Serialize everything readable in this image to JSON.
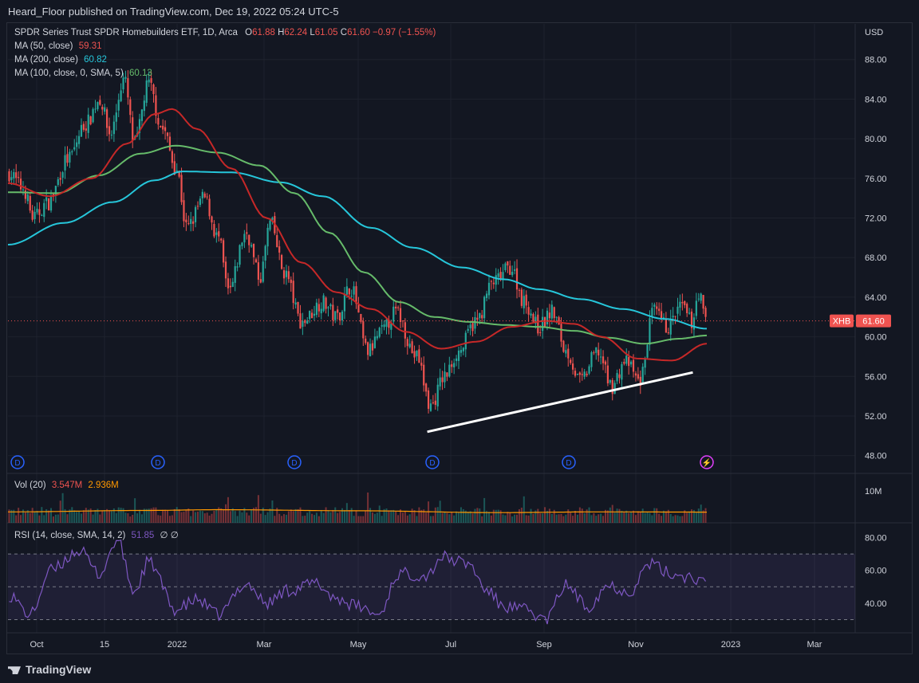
{
  "header": {
    "publish_line": "Heard_Floor published on TradingView.com, Dec 19, 2022 05:24 UTC-5"
  },
  "footer": {
    "brand": "TradingView"
  },
  "legend": {
    "symbol_line": "SPDR Series Trust SPDR Homebuilders ETF, 1D, Arca",
    "ohlc": {
      "o_label": "O",
      "o": "61.88",
      "h_label": "H",
      "h": "62.24",
      "l_label": "L",
      "l": "61.05",
      "c_label": "C",
      "c": "61.60",
      "change": "−0.97 (−1.55%)"
    },
    "ma50": {
      "label": "MA (50, close)",
      "value": "59.31"
    },
    "ma200": {
      "label": "MA (200, close)",
      "value": "60.82"
    },
    "ma100": {
      "label": "MA (100, close, 0, SMA, 5)",
      "value": "60.13"
    },
    "vol": {
      "label": "Vol (20)",
      "value1": "3.547M",
      "value2": "2.936M"
    },
    "rsi": {
      "label": "RSI (14, close, SMA, 14, 2)",
      "value": "51.85",
      "extra": "∅ ∅"
    }
  },
  "colors": {
    "background": "#131722",
    "up": "#26a69a",
    "down": "#ef5350",
    "ma50": "#c62828",
    "ma200": "#26c6da",
    "ma100": "#66bb6a",
    "rsi": "#7e57c2",
    "vol_ma": "#ff9800",
    "trendline": "#ffffff",
    "grid": "#1e222d",
    "text": "#d1d4dc"
  },
  "chart_data": {
    "type": "candlestick",
    "title": "SPDR Series Trust SPDR Homebuilders ETF, 1D, Arca",
    "ticker": "XHB",
    "last_price": "61.60",
    "currency_label": "USD",
    "price_axis_ticks": [
      "88.00",
      "84.00",
      "80.00",
      "76.00",
      "72.00",
      "68.00",
      "64.00",
      "60.00",
      "56.00",
      "52.00",
      "48.00"
    ],
    "ylim": [
      46.2,
      91.6
    ],
    "volume_axis_ticks": [
      "10M"
    ],
    "rsi_axis_ticks": [
      "80.00",
      "60.00",
      "40.00"
    ],
    "rsi_levels": [
      70,
      50,
      30
    ],
    "x_ticks": [
      "Oct",
      "15",
      "2022",
      "Mar",
      "May",
      "Jul",
      "Sep",
      "Nov",
      "2023",
      "Mar"
    ],
    "price_anchors": [
      {
        "t": 0,
        "v": 76.5
      },
      {
        "t": 0.02,
        "v": 75.0
      },
      {
        "t": 0.035,
        "v": 72.0
      },
      {
        "t": 0.055,
        "v": 73.5
      },
      {
        "t": 0.085,
        "v": 78.0
      },
      {
        "t": 0.11,
        "v": 81.5
      },
      {
        "t": 0.13,
        "v": 84.0
      },
      {
        "t": 0.145,
        "v": 80.5
      },
      {
        "t": 0.165,
        "v": 86.0
      },
      {
        "t": 0.18,
        "v": 79.5
      },
      {
        "t": 0.2,
        "v": 85.5
      },
      {
        "t": 0.22,
        "v": 81.0
      },
      {
        "t": 0.24,
        "v": 77.0
      },
      {
        "t": 0.255,
        "v": 71.0
      },
      {
        "t": 0.28,
        "v": 74.0
      },
      {
        "t": 0.3,
        "v": 70.0
      },
      {
        "t": 0.315,
        "v": 64.5
      },
      {
        "t": 0.34,
        "v": 70.5
      },
      {
        "t": 0.36,
        "v": 66.0
      },
      {
        "t": 0.375,
        "v": 71.5
      },
      {
        "t": 0.395,
        "v": 66.5
      },
      {
        "t": 0.42,
        "v": 61.5
      },
      {
        "t": 0.45,
        "v": 63.5
      },
      {
        "t": 0.47,
        "v": 62.0
      },
      {
        "t": 0.49,
        "v": 65.0
      },
      {
        "t": 0.515,
        "v": 58.5
      },
      {
        "t": 0.535,
        "v": 60.5
      },
      {
        "t": 0.555,
        "v": 62.5
      },
      {
        "t": 0.585,
        "v": 58.0
      },
      {
        "t": 0.605,
        "v": 53.0
      },
      {
        "t": 0.625,
        "v": 56.0
      },
      {
        "t": 0.645,
        "v": 58.5
      },
      {
        "t": 0.67,
        "v": 61.5
      },
      {
        "t": 0.695,
        "v": 65.5
      },
      {
        "t": 0.72,
        "v": 67.0
      },
      {
        "t": 0.74,
        "v": 63.5
      },
      {
        "t": 0.76,
        "v": 61.0
      },
      {
        "t": 0.78,
        "v": 62.5
      },
      {
        "t": 0.8,
        "v": 58.5
      },
      {
        "t": 0.82,
        "v": 55.5
      },
      {
        "t": 0.845,
        "v": 58.5
      },
      {
        "t": 0.865,
        "v": 55.0
      },
      {
        "t": 0.885,
        "v": 57.5
      },
      {
        "t": 0.905,
        "v": 55.5
      },
      {
        "t": 0.925,
        "v": 62.5
      },
      {
        "t": 0.945,
        "v": 61.0
      },
      {
        "t": 0.965,
        "v": 63.0
      },
      {
        "t": 0.98,
        "v": 61.5
      },
      {
        "t": 0.99,
        "v": 64.5
      },
      {
        "t": 1.0,
        "v": 61.6
      }
    ],
    "ma50_anchors": [
      {
        "t": 0,
        "v": 75.5
      },
      {
        "t": 0.06,
        "v": 74.2
      },
      {
        "t": 0.12,
        "v": 76.0
      },
      {
        "t": 0.17,
        "v": 79.5
      },
      {
        "t": 0.21,
        "v": 82.5
      },
      {
        "t": 0.235,
        "v": 83.0
      },
      {
        "t": 0.27,
        "v": 81.0
      },
      {
        "t": 0.32,
        "v": 77.0
      },
      {
        "t": 0.37,
        "v": 72.0
      },
      {
        "t": 0.42,
        "v": 67.5
      },
      {
        "t": 0.47,
        "v": 64.5
      },
      {
        "t": 0.52,
        "v": 62.8
      },
      {
        "t": 0.57,
        "v": 60.5
      },
      {
        "t": 0.62,
        "v": 58.8
      },
      {
        "t": 0.67,
        "v": 59.5
      },
      {
        "t": 0.72,
        "v": 61.0
      },
      {
        "t": 0.77,
        "v": 61.6
      },
      {
        "t": 0.81,
        "v": 61.3
      },
      {
        "t": 0.85,
        "v": 60.0
      },
      {
        "t": 0.9,
        "v": 57.8
      },
      {
        "t": 0.95,
        "v": 57.6
      },
      {
        "t": 1.0,
        "v": 59.31
      }
    ],
    "ma100_anchors": [
      {
        "t": 0,
        "v": 74.6
      },
      {
        "t": 0.07,
        "v": 74.5
      },
      {
        "t": 0.13,
        "v": 76.3
      },
      {
        "t": 0.19,
        "v": 78.5
      },
      {
        "t": 0.24,
        "v": 79.3
      },
      {
        "t": 0.3,
        "v": 78.6
      },
      {
        "t": 0.36,
        "v": 77.3
      },
      {
        "t": 0.41,
        "v": 74.5
      },
      {
        "t": 0.46,
        "v": 70.5
      },
      {
        "t": 0.51,
        "v": 66.5
      },
      {
        "t": 0.56,
        "v": 63.5
      },
      {
        "t": 0.61,
        "v": 62.0
      },
      {
        "t": 0.66,
        "v": 61.5
      },
      {
        "t": 0.71,
        "v": 61.2
      },
      {
        "t": 0.76,
        "v": 61.0
      },
      {
        "t": 0.81,
        "v": 60.6
      },
      {
        "t": 0.86,
        "v": 59.9
      },
      {
        "t": 0.91,
        "v": 59.3
      },
      {
        "t": 0.96,
        "v": 59.8
      },
      {
        "t": 1.0,
        "v": 60.13
      }
    ],
    "ma200_anchors": [
      {
        "t": 0,
        "v": 69.3
      },
      {
        "t": 0.08,
        "v": 71.5
      },
      {
        "t": 0.15,
        "v": 73.6
      },
      {
        "t": 0.21,
        "v": 75.8
      },
      {
        "t": 0.25,
        "v": 76.7
      },
      {
        "t": 0.32,
        "v": 76.6
      },
      {
        "t": 0.39,
        "v": 75.6
      },
      {
        "t": 0.45,
        "v": 74.2
      },
      {
        "t": 0.52,
        "v": 71.0
      },
      {
        "t": 0.58,
        "v": 69.0
      },
      {
        "t": 0.65,
        "v": 67.0
      },
      {
        "t": 0.71,
        "v": 65.8
      },
      {
        "t": 0.76,
        "v": 64.8
      },
      {
        "t": 0.82,
        "v": 63.8
      },
      {
        "t": 0.88,
        "v": 62.8
      },
      {
        "t": 0.94,
        "v": 61.8
      },
      {
        "t": 1.0,
        "v": 60.82
      }
    ],
    "rsi_anchors": [
      {
        "t": 0,
        "v": 45
      },
      {
        "t": 0.03,
        "v": 33
      },
      {
        "t": 0.06,
        "v": 60
      },
      {
        "t": 0.1,
        "v": 72
      },
      {
        "t": 0.13,
        "v": 58
      },
      {
        "t": 0.155,
        "v": 78
      },
      {
        "t": 0.18,
        "v": 47
      },
      {
        "t": 0.2,
        "v": 65
      },
      {
        "t": 0.24,
        "v": 36
      },
      {
        "t": 0.27,
        "v": 42
      },
      {
        "t": 0.3,
        "v": 33
      },
      {
        "t": 0.34,
        "v": 52
      },
      {
        "t": 0.37,
        "v": 40
      },
      {
        "t": 0.4,
        "v": 48
      },
      {
        "t": 0.44,
        "v": 52
      },
      {
        "t": 0.47,
        "v": 43
      },
      {
        "t": 0.5,
        "v": 38
      },
      {
        "t": 0.53,
        "v": 33
      },
      {
        "t": 0.56,
        "v": 58
      },
      {
        "t": 0.6,
        "v": 57
      },
      {
        "t": 0.62,
        "v": 68
      },
      {
        "t": 0.66,
        "v": 64
      },
      {
        "t": 0.685,
        "v": 48
      },
      {
        "t": 0.71,
        "v": 38
      },
      {
        "t": 0.74,
        "v": 36
      },
      {
        "t": 0.77,
        "v": 30
      },
      {
        "t": 0.8,
        "v": 51
      },
      {
        "t": 0.83,
        "v": 38
      },
      {
        "t": 0.86,
        "v": 51
      },
      {
        "t": 0.89,
        "v": 47
      },
      {
        "t": 0.92,
        "v": 64
      },
      {
        "t": 0.95,
        "v": 58
      },
      {
        "t": 0.98,
        "v": 56
      },
      {
        "t": 1.0,
        "v": 51.85
      }
    ],
    "volume_baseline": 2.9,
    "volume_anchors": [
      {
        "t": 0,
        "v": 3.0
      },
      {
        "t": 0.2,
        "v": 3.4
      },
      {
        "t": 0.3,
        "v": 3.6
      },
      {
        "t": 0.5,
        "v": 3.3
      },
      {
        "t": 0.7,
        "v": 2.8
      },
      {
        "t": 0.85,
        "v": 3.0
      },
      {
        "t": 1.0,
        "v": 2.94
      }
    ],
    "trendline": {
      "from_t": 0.6,
      "from_v": 50.4,
      "to_t": 0.98,
      "to_v": 56.4
    },
    "dividend_markers": [
      "D",
      "D",
      "D",
      "D",
      "D"
    ],
    "event_marker": "⚡"
  }
}
